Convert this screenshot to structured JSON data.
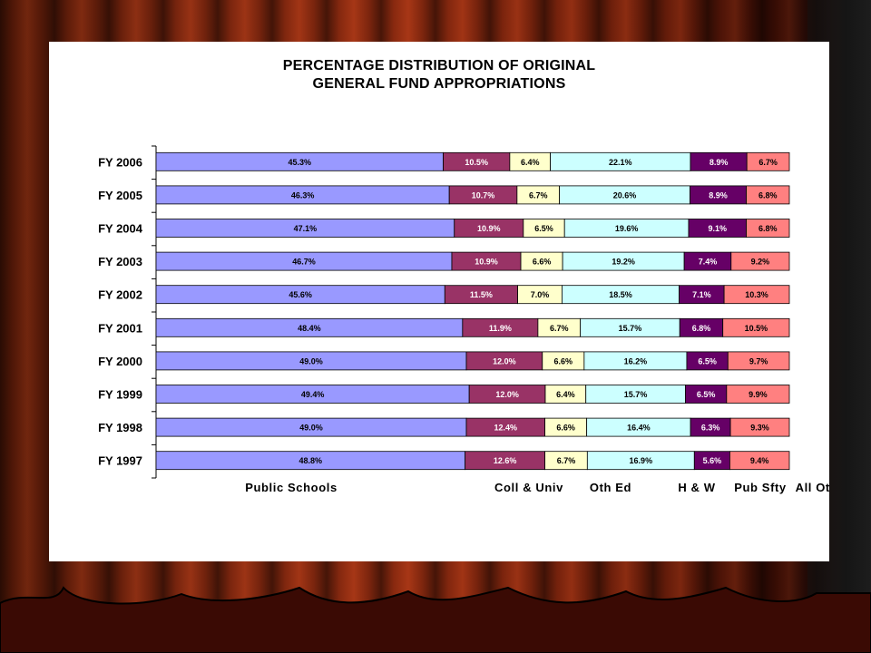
{
  "slide": {
    "title_line1": "PERCENTAGE DISTRIBUTION OF ORIGINAL",
    "title_line2": "GENERAL FUND APPROPRIATIONS"
  },
  "colors": {
    "public_schools": "#9999ff",
    "coll_univ": "#993366",
    "oth_ed": "#ffffcc",
    "h_w": "#ccffff",
    "pub_sfty": "#660066",
    "all_oth": "#ff8080",
    "panel": "#ffffff",
    "curtain": "#8a2a10"
  },
  "chart_data": {
    "type": "bar",
    "orientation": "horizontal",
    "stacked": true,
    "percent_stacked": true,
    "title": "PERCENTAGE DISTRIBUTION OF ORIGINAL GENERAL FUND APPROPRIATIONS",
    "categories": [
      "FY 2006",
      "FY 2005",
      "FY 2004",
      "FY 2003",
      "FY 2002",
      "FY 2001",
      "FY 2000",
      "FY 1999",
      "FY 1998",
      "FY 1997"
    ],
    "series": [
      {
        "name": "Public Schools",
        "labels": [
          "45.3%",
          "46.3%",
          "47.1%",
          "46.7%",
          "45.6%",
          "48.4%",
          "49.0%",
          "49.4%",
          "49.0%",
          "48.8%"
        ],
        "values": [
          45.3,
          46.3,
          47.1,
          46.7,
          45.6,
          48.4,
          49.0,
          49.4,
          49.0,
          48.8
        ]
      },
      {
        "name": "Coll & Univ",
        "labels": [
          "10.5%",
          "10.7%",
          "10.9%",
          "10.9%",
          "11.5%",
          "11.9%",
          "12.0%",
          "12.0%",
          "12.4%",
          "12.6%"
        ],
        "values": [
          10.5,
          10.7,
          10.9,
          10.9,
          11.5,
          11.9,
          12.0,
          12.0,
          12.4,
          12.6
        ]
      },
      {
        "name": "Oth Ed",
        "labels": [
          "6.4%",
          "6.7%",
          "6.5%",
          "6.6%",
          "7.0%",
          "6.7%",
          "6.6%",
          "6.4%",
          "6.6%",
          "6.7%"
        ],
        "values": [
          6.4,
          6.7,
          6.5,
          6.6,
          7.0,
          6.7,
          6.6,
          6.4,
          6.6,
          6.7
        ]
      },
      {
        "name": "H & W",
        "labels": [
          "22.1%",
          "20.6%",
          "19.6%",
          "19.2%",
          "18.5%",
          "15.7%",
          "16.2%",
          "15.7%",
          "16.4%",
          "16.9%"
        ],
        "values": [
          22.1,
          20.6,
          19.6,
          19.2,
          18.5,
          15.7,
          16.2,
          15.7,
          16.4,
          16.9
        ]
      },
      {
        "name": "Pub Sfty",
        "labels": [
          "8.9%",
          "8.9%",
          "9.1%",
          "7.4%",
          "7.1%",
          "6.8%",
          "6.5%",
          "6.5%",
          "6.3%",
          "5.6%"
        ],
        "values": [
          8.9,
          8.9,
          9.1,
          7.4,
          7.1,
          6.8,
          6.5,
          6.5,
          6.3,
          5.6
        ]
      },
      {
        "name": "All Oth",
        "labels": [
          "6.7%",
          "6.8%",
          "6.8%",
          "9.2%",
          "10.3%",
          "10.5%",
          "9.7%",
          "9.9%",
          "9.3%",
          "9.4%"
        ],
        "values": [
          6.7,
          6.8,
          6.8,
          9.2,
          10.3,
          10.5,
          9.7,
          9.9,
          9.3,
          9.4
        ]
      }
    ],
    "x_axis_labels": [
      "Public Schools",
      "Coll & Univ",
      "Oth Ed",
      "H & W",
      "Pub Sfty",
      "All Oth"
    ],
    "legend": "none",
    "grid": false
  }
}
